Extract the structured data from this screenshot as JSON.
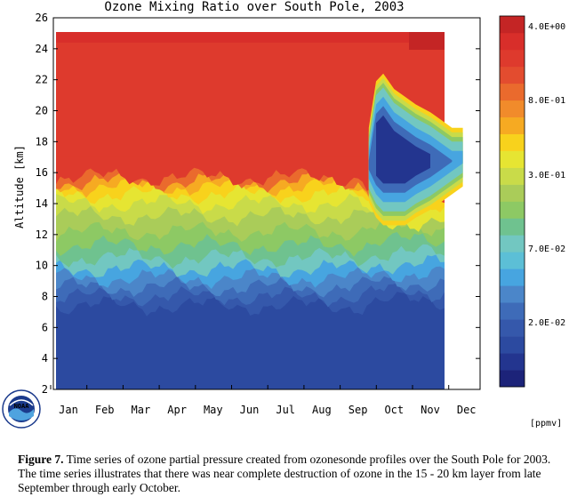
{
  "chart_data": {
    "type": "heatmap",
    "title": "Ozone Mixing Ratio over South Pole, 2003",
    "ylabel": "Altitude [km]",
    "xlabel": "",
    "ylim": [
      2,
      26
    ],
    "yticks": [
      "2",
      "4",
      "6",
      "8",
      "10",
      "12",
      "14",
      "16",
      "18",
      "20",
      "22",
      "24",
      "26"
    ],
    "months": [
      "Jan",
      "Feb",
      "Mar",
      "Apr",
      "May",
      "Jun",
      "Jul",
      "Aug",
      "Sep",
      "Oct",
      "Nov",
      "Dec"
    ],
    "colorbar_labels": [
      "4.0E+00",
      "8.0E-01",
      "3.0E-01",
      "7.0E-02",
      "2.0E-02"
    ],
    "colorbar_unit": "[ppmv]",
    "colorbar_colors": [
      "#1c2379",
      "#23358f",
      "#2c4aa0",
      "#3558ab",
      "#3e6bb8",
      "#4b86c9",
      "#47a5e0",
      "#5cbfd6",
      "#72c7c1",
      "#6fc28f",
      "#8dc964",
      "#aacc59",
      "#c9db49",
      "#e6e532",
      "#f8d21c",
      "#f6aa22",
      "#f18b2b",
      "#ea6a2d",
      "#e34c2f",
      "#de3a2d",
      "#d82e2a",
      "#c42525"
    ],
    "series": [
      {
        "name": "",
        "time_month": [
          0,
          0.5,
          1,
          1.5,
          2,
          2.5,
          3,
          3.5,
          4,
          4.5,
          5,
          5.5,
          6,
          6.5,
          7,
          7.5,
          8,
          8.3,
          8.5,
          8.7,
          9,
          9.3,
          9.6,
          10,
          10.3,
          10.6,
          10.9
        ],
        "ozone_hole_base_km": [
          16,
          16,
          16,
          16,
          16,
          16,
          16,
          16,
          16,
          16,
          16,
          16,
          16,
          16,
          16,
          16,
          16,
          15,
          14,
          13.5,
          13.5,
          13.5,
          14,
          14.5,
          15,
          15.5,
          16
        ],
        "ozone_hole_top_km": [
          16,
          16,
          16,
          16,
          16,
          16,
          16,
          16,
          16,
          16,
          16,
          16,
          16,
          16,
          16,
          16,
          16,
          18,
          21,
          21.5,
          20.5,
          20,
          19.5,
          19,
          18.5,
          18,
          18
        ]
      }
    ]
  },
  "caption": {
    "figure_label": "Figure 7.",
    "text": " Time series of ozone partial pressure created from ozonesonde profiles over the South Pole for 2003.  The time series  illustrates that there was  near complete destruction of ozone in the 15 - 20 km layer from late September through early October."
  },
  "logo": {
    "text": "NOAA"
  }
}
